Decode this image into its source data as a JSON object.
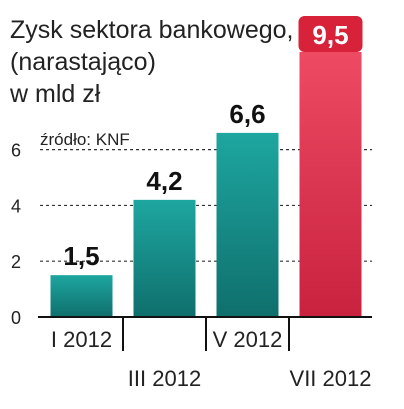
{
  "chart_data": {
    "type": "bar",
    "title_lines": [
      "Zysk sektora bankowego,",
      "(narastająco)",
      "w mld zł"
    ],
    "source": "źródło: KNF",
    "categories": [
      "I 2012",
      "III 2012",
      "V 2012",
      "VII 2012"
    ],
    "values": [
      1.5,
      4.2,
      6.6,
      9.5
    ],
    "value_labels": [
      "1,5",
      "4,2",
      "6,6",
      "9,5"
    ],
    "yticks": [
      0,
      2,
      4,
      6
    ],
    "ylim": [
      0,
      9.5
    ],
    "grid": true,
    "highlight_index": 3,
    "colors": {
      "bar": "#1e9a95",
      "bar_dark": "#0f6f6c",
      "highlight": "#e53a55",
      "highlight_dark": "#c8223f",
      "badge": "#d8223a"
    }
  }
}
